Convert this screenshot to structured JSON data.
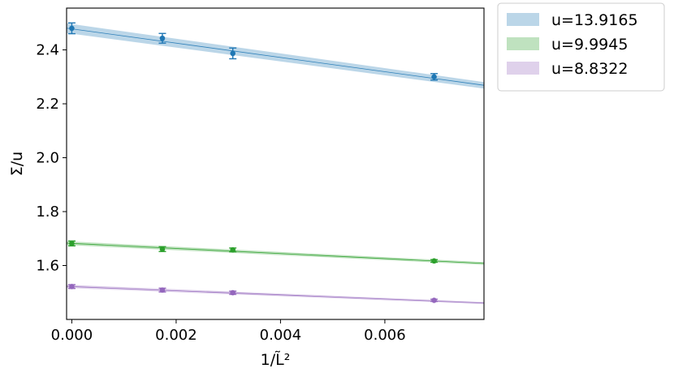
{
  "chart_data": {
    "type": "scatter",
    "xlabel": "1/L̃²",
    "ylabel": "Σ/u",
    "xlim": [
      -0.0001,
      0.0079
    ],
    "ylim": [
      1.4,
      2.555
    ],
    "x_ticks": [
      0.0,
      0.002,
      0.004,
      0.006
    ],
    "x_tick_labels": [
      "0.000",
      "0.002",
      "0.004",
      "0.006"
    ],
    "y_ticks": [
      1.6,
      1.8,
      2.0,
      2.2,
      2.4
    ],
    "y_tick_labels": [
      "1.6",
      "1.8",
      "2.0",
      "2.2",
      "2.4"
    ],
    "grid": false,
    "legend_position": "outside-upper-right",
    "series": [
      {
        "name": "u=13.9165",
        "color": "#1f77b4",
        "band_color": "#1f77b4",
        "x": [
          0.0,
          0.001736,
          0.003086,
          0.006944
        ],
        "y": [
          2.48,
          2.443,
          2.387,
          2.3
        ],
        "yerr": [
          0.02,
          0.018,
          0.02,
          0.012
        ],
        "fit_intercept": 2.478,
        "fit_slope": -26.5,
        "band_halfwidth_start": 0.018,
        "band_halfwidth_end": 0.012
      },
      {
        "name": "u=9.9945",
        "color": "#2ca02c",
        "band_color": "#2ca02c",
        "x": [
          0.0,
          0.001736,
          0.003086,
          0.006944
        ],
        "y": [
          1.682,
          1.661,
          1.658,
          1.617
        ],
        "yerr": [
          0.009,
          0.009,
          0.007,
          0.005
        ],
        "fit_intercept": 1.682,
        "fit_slope": -9.39,
        "band_halfwidth_start": 0.007,
        "band_halfwidth_end": 0.005
      },
      {
        "name": "u=8.8322",
        "color": "#9467bd",
        "band_color": "#9467bd",
        "x": [
          0.0,
          0.001736,
          0.003086,
          0.006944
        ],
        "y": [
          1.522,
          1.509,
          1.499,
          1.471
        ],
        "yerr": [
          0.007,
          0.007,
          0.006,
          0.004
        ],
        "fit_intercept": 1.522,
        "fit_slope": -7.74,
        "band_halfwidth_start": 0.006,
        "band_halfwidth_end": 0.004
      }
    ]
  }
}
